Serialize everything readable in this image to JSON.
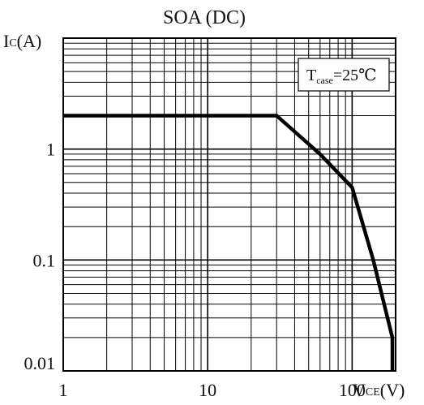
{
  "chart_data": {
    "type": "line",
    "title": "SOA (DC)",
    "ylabel": {
      "main": "I",
      "sub": "C",
      "unit": "(A)"
    },
    "xlabel": {
      "main": "V",
      "sub": "CE",
      "unit": "(V)"
    },
    "x_scale": "log",
    "y_scale": "log",
    "xlim": [
      1,
      200
    ],
    "ylim": [
      0.01,
      10
    ],
    "grid": true,
    "x_ticks": [
      {
        "value": 1,
        "label": "1"
      },
      {
        "value": 10,
        "label": "10"
      },
      {
        "value": 100,
        "label": "100"
      }
    ],
    "y_ticks": [
      {
        "value": 1,
        "label": "1"
      },
      {
        "value": 0.1,
        "label": "0.1"
      },
      {
        "value": 0.01,
        "label": "0.01"
      }
    ],
    "annotation": {
      "prefix": "T",
      "sub": "case",
      "suffix": "=25℃"
    },
    "series": [
      {
        "x": [
          1,
          30,
          60,
          100,
          140,
          190,
          190
        ],
        "y": [
          2,
          2,
          0.9,
          0.45,
          0.1,
          0.02,
          0.01
        ],
        "color": "#000000"
      }
    ]
  }
}
